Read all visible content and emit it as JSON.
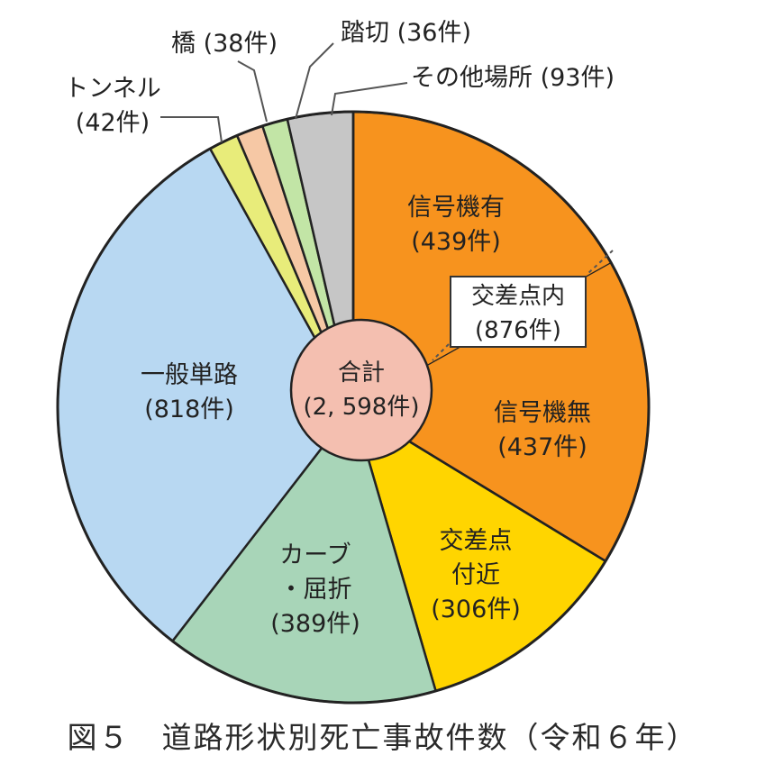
{
  "chart_data": {
    "type": "pie",
    "title": "",
    "total_label": "合計",
    "total_value": "(2, 598件)",
    "slices": [
      {
        "name": "信号機有",
        "value": 439,
        "value_label": "(439件)",
        "color": "#f7931e"
      },
      {
        "name": "信号機無",
        "value": 437,
        "value_label": "(437件)",
        "color": "#f7931e"
      },
      {
        "name": "交差点付近",
        "value": 306,
        "value_label": "(306件)",
        "color": "#ffd500"
      },
      {
        "name": "カーブ・屈折",
        "value": 389,
        "value_label": "(389件)",
        "color": "#a8d5b8"
      },
      {
        "name": "一般単路",
        "value": 818,
        "value_label": "(818件)",
        "color": "#b8d8f2"
      },
      {
        "name": "トンネル",
        "value": 42,
        "value_label": "(42件)",
        "color": "#e8ec7a"
      },
      {
        "name": "橋",
        "value": 38,
        "value_label": "(38件)",
        "color": "#f6c8a5"
      },
      {
        "name": "踏切",
        "value": 36,
        "value_label": "(36件)",
        "color": "#c2e5a6"
      },
      {
        "name": "その他場所",
        "value": 93,
        "value_label": "(93件)",
        "color": "#c6c6c6"
      }
    ],
    "group_annotation": {
      "line1": "交差点内",
      "line2": "(876件)"
    }
  },
  "labels": {
    "signal_yes": {
      "line1": "信号機有",
      "line2": "(439件)"
    },
    "signal_no": {
      "line1": "信号機無",
      "line2": "(437件)"
    },
    "near_intersection": {
      "line1": "交差点",
      "line2": "付近",
      "line3": "(306件)"
    },
    "curve": {
      "line1": "カーブ",
      "line2": "・屈折",
      "line3": "(389件)"
    },
    "general_road": {
      "line1": "一般単路",
      "line2": "(818件)"
    },
    "tunnel": {
      "line1": "トンネル",
      "line2": "(42件)"
    },
    "bridge": {
      "line1": "橋 (38件)"
    },
    "crossing": {
      "line1": "踏切 (36件)"
    },
    "other": {
      "line1": "その他場所 (93件)"
    }
  },
  "caption": "図５　道路形状別死亡事故件数（令和６年）",
  "colors": {
    "outline": "#222222",
    "center_fill": "#f4bfb0",
    "leader": "#555555"
  }
}
